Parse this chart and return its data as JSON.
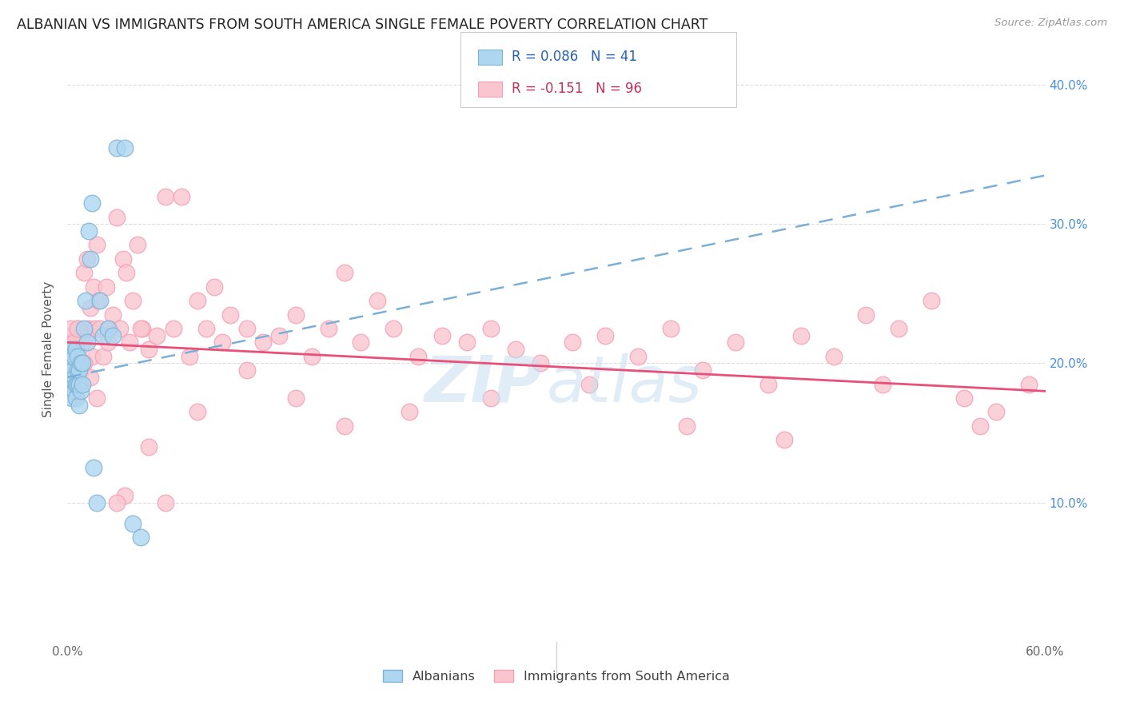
{
  "title": "ALBANIAN VS IMMIGRANTS FROM SOUTH AMERICA SINGLE FEMALE POVERTY CORRELATION CHART",
  "source": "Source: ZipAtlas.com",
  "ylabel": "Single Female Poverty",
  "xlim": [
    0,
    0.6
  ],
  "ylim": [
    0,
    0.42
  ],
  "x_tick_positions": [
    0.0,
    0.1,
    0.2,
    0.3,
    0.4,
    0.5,
    0.6
  ],
  "x_tick_labels": [
    "0.0%",
    "",
    "",
    "",
    "",
    "",
    "60.0%"
  ],
  "y_tick_positions": [
    0.0,
    0.1,
    0.2,
    0.3,
    0.4
  ],
  "y_tick_labels_right": [
    "",
    "10.0%",
    "20.0%",
    "30.0%",
    "40.0%"
  ],
  "legend_label1": "Albanians",
  "legend_label2": "Immigrants from South America",
  "blue_fill": "#aed6f1",
  "blue_edge": "#7fb3d3",
  "pink_fill": "#f9c6d0",
  "pink_edge": "#f4a0b5",
  "trend_blue_color": "#7ab0d8",
  "trend_pink_color": "#e8507a",
  "background_color": "#ffffff",
  "grid_color": "#dddddd",
  "watermark_zip_color": "#c8dff0",
  "watermark_atlas_color": "#c8dff0",
  "alb_x": [
    0.001,
    0.001,
    0.002,
    0.002,
    0.002,
    0.003,
    0.003,
    0.003,
    0.003,
    0.004,
    0.004,
    0.004,
    0.005,
    0.005,
    0.005,
    0.006,
    0.006,
    0.006,
    0.007,
    0.007,
    0.007,
    0.008,
    0.008,
    0.009,
    0.009,
    0.01,
    0.011,
    0.012,
    0.013,
    0.014,
    0.015,
    0.016,
    0.018,
    0.02,
    0.022,
    0.025,
    0.028,
    0.03,
    0.035,
    0.04,
    0.045
  ],
  "alb_y": [
    0.195,
    0.205,
    0.185,
    0.19,
    0.21,
    0.175,
    0.185,
    0.195,
    0.205,
    0.18,
    0.19,
    0.205,
    0.175,
    0.185,
    0.21,
    0.185,
    0.195,
    0.205,
    0.17,
    0.185,
    0.195,
    0.18,
    0.2,
    0.185,
    0.2,
    0.225,
    0.245,
    0.215,
    0.295,
    0.275,
    0.315,
    0.125,
    0.1,
    0.245,
    0.22,
    0.225,
    0.22,
    0.355,
    0.355,
    0.085,
    0.075
  ],
  "sa_x": [
    0.002,
    0.003,
    0.005,
    0.006,
    0.007,
    0.008,
    0.009,
    0.01,
    0.011,
    0.012,
    0.013,
    0.014,
    0.015,
    0.016,
    0.017,
    0.018,
    0.019,
    0.02,
    0.022,
    0.024,
    0.026,
    0.028,
    0.03,
    0.032,
    0.034,
    0.036,
    0.038,
    0.04,
    0.043,
    0.046,
    0.05,
    0.055,
    0.06,
    0.065,
    0.07,
    0.075,
    0.08,
    0.085,
    0.09,
    0.095,
    0.1,
    0.11,
    0.12,
    0.13,
    0.14,
    0.15,
    0.16,
    0.17,
    0.18,
    0.19,
    0.2,
    0.215,
    0.23,
    0.245,
    0.26,
    0.275,
    0.29,
    0.31,
    0.33,
    0.35,
    0.37,
    0.39,
    0.41,
    0.43,
    0.45,
    0.47,
    0.49,
    0.51,
    0.53,
    0.55,
    0.57,
    0.59,
    0.002,
    0.004,
    0.006,
    0.008,
    0.01,
    0.014,
    0.018,
    0.025,
    0.035,
    0.045,
    0.06,
    0.08,
    0.11,
    0.14,
    0.17,
    0.21,
    0.26,
    0.32,
    0.38,
    0.44,
    0.5,
    0.56,
    0.03,
    0.05
  ],
  "sa_y": [
    0.215,
    0.22,
    0.19,
    0.225,
    0.2,
    0.22,
    0.215,
    0.265,
    0.22,
    0.275,
    0.225,
    0.24,
    0.205,
    0.255,
    0.225,
    0.285,
    0.245,
    0.225,
    0.205,
    0.255,
    0.225,
    0.235,
    0.305,
    0.225,
    0.275,
    0.265,
    0.215,
    0.245,
    0.285,
    0.225,
    0.21,
    0.22,
    0.32,
    0.225,
    0.32,
    0.205,
    0.245,
    0.225,
    0.255,
    0.215,
    0.235,
    0.225,
    0.215,
    0.22,
    0.235,
    0.205,
    0.225,
    0.265,
    0.215,
    0.245,
    0.225,
    0.205,
    0.22,
    0.215,
    0.225,
    0.21,
    0.2,
    0.215,
    0.22,
    0.205,
    0.225,
    0.195,
    0.215,
    0.185,
    0.22,
    0.205,
    0.235,
    0.225,
    0.245,
    0.175,
    0.165,
    0.185,
    0.225,
    0.215,
    0.225,
    0.195,
    0.2,
    0.19,
    0.175,
    0.215,
    0.105,
    0.225,
    0.1,
    0.165,
    0.195,
    0.175,
    0.155,
    0.165,
    0.175,
    0.185,
    0.155,
    0.145,
    0.185,
    0.155,
    0.1,
    0.14
  ],
  "trend_blue_x0": 0.0,
  "trend_blue_y0": 0.19,
  "trend_blue_x1": 0.6,
  "trend_blue_y1": 0.335,
  "trend_pink_x0": 0.0,
  "trend_pink_y0": 0.215,
  "trend_pink_x1": 0.6,
  "trend_pink_y1": 0.18
}
